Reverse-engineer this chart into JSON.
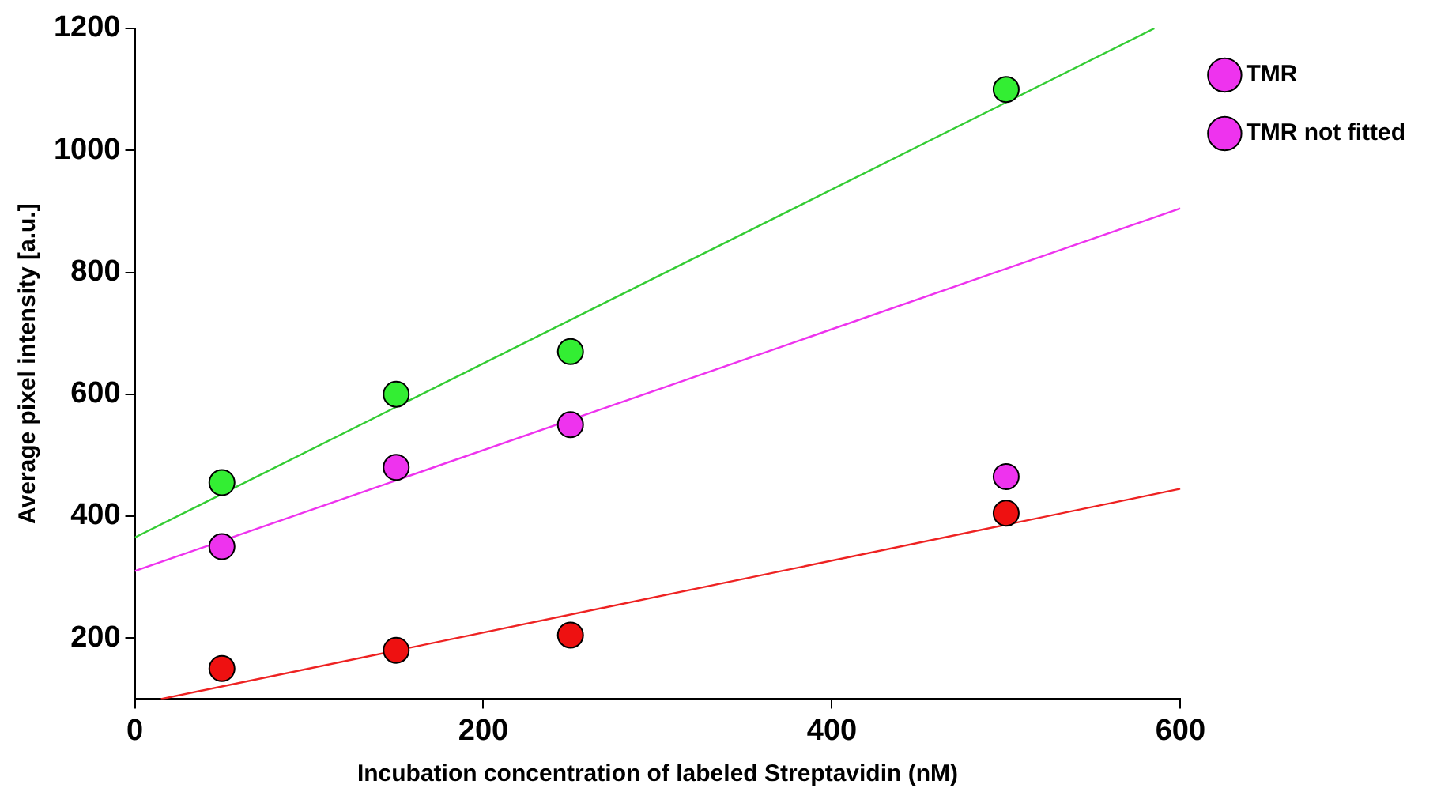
{
  "chart_data": {
    "type": "scatter",
    "xlabel": "Incubation concentration of labeled Streptavidin (nM)",
    "ylabel": "Average pixel intensity [a.u.]",
    "xlim": [
      0,
      600
    ],
    "xticks": [
      0,
      200,
      400,
      600
    ],
    "ylim": [
      100,
      1200
    ],
    "yticks": [
      200,
      400,
      600,
      800,
      1000,
      1200
    ],
    "grid": false,
    "legend": "right",
    "marker": "circle",
    "series": [
      {
        "type": "line",
        "color": "#33cc33",
        "x": [
          0,
          585
        ],
        "values": [
          365,
          1200
        ],
        "marker": "none"
      },
      {
        "type": "line",
        "color": "#ee33ee",
        "x": [
          0,
          600
        ],
        "values": [
          310,
          905
        ],
        "marker": "none"
      },
      {
        "type": "line",
        "color": "#ee2222",
        "x": [
          15,
          600
        ],
        "values": [
          100,
          445
        ],
        "marker": "none"
      },
      {
        "color": "#33ee33",
        "x": [
          50,
          150,
          250,
          500
        ],
        "values": [
          455,
          600,
          670,
          1100
        ]
      },
      {
        "name": "TMR",
        "color": "#ee33ee",
        "x": [
          50,
          150,
          250
        ],
        "values": [
          350,
          480,
          550
        ]
      },
      {
        "color": "#ee1111",
        "x": [
          50,
          150,
          250,
          500
        ],
        "values": [
          150,
          180,
          205,
          405
        ]
      },
      {
        "name": "TMR not fitted",
        "color": "#ee33ee",
        "x": [
          500
        ],
        "values": [
          465
        ]
      }
    ]
  }
}
